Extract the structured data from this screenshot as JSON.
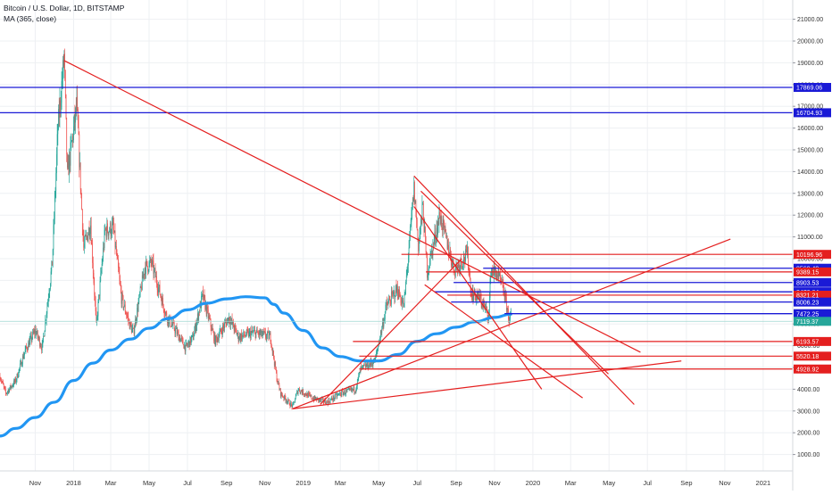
{
  "header": {
    "title": "Bitcoin / U.S. Dollar, 1D, BITSTAMP",
    "indicator": "MA (365, close)"
  },
  "chart_data": {
    "type": "candlestick",
    "title": "Bitcoin / U.S. Dollar, 1D, BITSTAMP",
    "indicator_label": "MA (365, close)",
    "ylim": [
      0,
      22000
    ],
    "y_ticks": [
      1000,
      2000,
      3000,
      4000,
      5000,
      6000,
      7000,
      8000,
      9000,
      10000,
      11000,
      12000,
      13000,
      14000,
      15000,
      16000,
      17000,
      18000,
      19000,
      20000,
      21000
    ],
    "xlim": [
      "2017-09-06",
      "2021-02-17"
    ],
    "x_ticks": [
      {
        "date": "2017-11-01",
        "label": "Nov"
      },
      {
        "date": "2018-01-01",
        "label": "2018"
      },
      {
        "date": "2018-03-01",
        "label": "Mar"
      },
      {
        "date": "2018-05-01",
        "label": "May"
      },
      {
        "date": "2018-07-01",
        "label": "Jul"
      },
      {
        "date": "2018-09-01",
        "label": "Sep"
      },
      {
        "date": "2018-11-01",
        "label": "Nov"
      },
      {
        "date": "2019-01-01",
        "label": "2019"
      },
      {
        "date": "2019-03-01",
        "label": "Mar"
      },
      {
        "date": "2019-05-01",
        "label": "May"
      },
      {
        "date": "2019-07-01",
        "label": "Jul"
      },
      {
        "date": "2019-09-01",
        "label": "Sep"
      },
      {
        "date": "2019-11-01",
        "label": "Nov"
      },
      {
        "date": "2020-01-01",
        "label": "2020"
      },
      {
        "date": "2020-03-01",
        "label": "Mar"
      },
      {
        "date": "2020-05-01",
        "label": "May"
      },
      {
        "date": "2020-07-01",
        "label": "Jul"
      },
      {
        "date": "2020-09-01",
        "label": "Sep"
      },
      {
        "date": "2020-11-01",
        "label": "Nov"
      },
      {
        "date": "2021-01-01",
        "label": "2021"
      }
    ],
    "price_path": [
      [
        "2017-09-06",
        4600
      ],
      [
        "2017-09-15",
        3800
      ],
      [
        "2017-10-01",
        4400
      ],
      [
        "2017-10-15",
        5700
      ],
      [
        "2017-11-01",
        6700
      ],
      [
        "2017-11-12",
        5900
      ],
      [
        "2017-11-28",
        9800
      ],
      [
        "2017-12-07",
        16000
      ],
      [
        "2017-12-17",
        19300
      ],
      [
        "2017-12-22",
        13800
      ],
      [
        "2018-01-06",
        17000
      ],
      [
        "2018-01-17",
        10500
      ],
      [
        "2018-01-28",
        11600
      ],
      [
        "2018-02-06",
        6900
      ],
      [
        "2018-02-20",
        11300
      ],
      [
        "2018-03-05",
        11400
      ],
      [
        "2018-03-18",
        8200
      ],
      [
        "2018-04-01",
        6900
      ],
      [
        "2018-04-06",
        6600
      ],
      [
        "2018-04-24",
        9600
      ],
      [
        "2018-05-05",
        9800
      ],
      [
        "2018-05-28",
        7400
      ],
      [
        "2018-06-12",
        6700
      ],
      [
        "2018-06-28",
        5900
      ],
      [
        "2018-07-10",
        6400
      ],
      [
        "2018-07-25",
        8300
      ],
      [
        "2018-08-14",
        6200
      ],
      [
        "2018-09-05",
        7300
      ],
      [
        "2018-09-20",
        6400
      ],
      [
        "2018-10-15",
        6600
      ],
      [
        "2018-11-10",
        6400
      ],
      [
        "2018-11-20",
        4500
      ],
      [
        "2018-11-26",
        3800
      ],
      [
        "2018-12-15",
        3200
      ],
      [
        "2018-12-24",
        4000
      ],
      [
        "2019-01-15",
        3600
      ],
      [
        "2019-02-08",
        3400
      ],
      [
        "2019-03-01",
        3800
      ],
      [
        "2019-03-25",
        4000
      ],
      [
        "2019-04-02",
        4900
      ],
      [
        "2019-04-25",
        5300
      ],
      [
        "2019-05-13",
        7800
      ],
      [
        "2019-05-30",
        8600
      ],
      [
        "2019-06-10",
        7800
      ],
      [
        "2019-06-26",
        13200
      ],
      [
        "2019-07-03",
        10600
      ],
      [
        "2019-07-10",
        12400
      ],
      [
        "2019-07-17",
        9400
      ],
      [
        "2019-08-06",
        12000
      ],
      [
        "2019-08-29",
        9500
      ],
      [
        "2019-09-19",
        10200
      ],
      [
        "2019-09-25",
        8400
      ],
      [
        "2019-10-08",
        8200
      ],
      [
        "2019-10-23",
        7400
      ],
      [
        "2019-10-26",
        9500
      ],
      [
        "2019-11-05",
        9300
      ],
      [
        "2019-11-15",
        8600
      ],
      [
        "2019-11-25",
        7100
      ],
      [
        "2019-11-27",
        7500
      ]
    ],
    "ma_365": [
      [
        "2017-09-06",
        1850
      ],
      [
        "2017-10-01",
        2200
      ],
      [
        "2017-11-01",
        2700
      ],
      [
        "2017-12-01",
        3400
      ],
      [
        "2018-01-01",
        4400
      ],
      [
        "2018-02-01",
        5200
      ],
      [
        "2018-03-01",
        5800
      ],
      [
        "2018-04-01",
        6300
      ],
      [
        "2018-05-01",
        6800
      ],
      [
        "2018-06-01",
        7250
      ],
      [
        "2018-07-01",
        7650
      ],
      [
        "2018-08-01",
        7950
      ],
      [
        "2018-09-01",
        8150
      ],
      [
        "2018-10-01",
        8250
      ],
      [
        "2018-11-01",
        8200
      ],
      [
        "2018-11-15",
        7900
      ],
      [
        "2018-12-01",
        7500
      ],
      [
        "2019-01-01",
        6700
      ],
      [
        "2019-02-01",
        5900
      ],
      [
        "2019-03-01",
        5500
      ],
      [
        "2019-04-01",
        5300
      ],
      [
        "2019-05-01",
        5300
      ],
      [
        "2019-06-01",
        5600
      ],
      [
        "2019-07-01",
        6200
      ],
      [
        "2019-08-01",
        6550
      ],
      [
        "2019-09-01",
        6850
      ],
      [
        "2019-10-01",
        7100
      ],
      [
        "2019-11-01",
        7300
      ],
      [
        "2019-11-27",
        7450
      ]
    ],
    "current_price_line": 7119.37,
    "horizontal_levels": [
      {
        "value": 17869.06,
        "label": "17869.06",
        "color": "#1a1ad6"
      },
      {
        "value": 16704.93,
        "label": "16704.93",
        "color": "#1a1ad6"
      },
      {
        "value": 10196.96,
        "label": "10196.96",
        "color": "#e41f1f"
      },
      {
        "value": 9560.49,
        "label": "9560.49",
        "color": "#1a1ad6"
      },
      {
        "value": 9389.15,
        "label": "9389.15",
        "color": "#e41f1f"
      },
      {
        "value": 8903.53,
        "label": "8903.53",
        "color": "#1a1ad6"
      },
      {
        "value": 8476.64,
        "label": "8476.64",
        "color": "#1a1ad6"
      },
      {
        "value": 8321.21,
        "label": "8321.21",
        "color": "#e41f1f"
      },
      {
        "value": 8006.23,
        "label": "8006.23",
        "color": "#1a1ad6"
      },
      {
        "value": 7472.25,
        "label": "7472.25",
        "color": "#1a1ad6"
      },
      {
        "value": 7119.37,
        "label": "7119.37",
        "color": "#26a69a"
      },
      {
        "value": 6193.57,
        "label": "6193.57",
        "color": "#e41f1f"
      },
      {
        "value": 5520.18,
        "label": "5520.18",
        "color": "#e41f1f"
      },
      {
        "value": 4928.92,
        "label": "4928.92",
        "color": "#e41f1f"
      }
    ],
    "trendlines": [
      {
        "from": [
          "2017-12-17",
          19100
        ],
        "to": [
          "2020-06-20",
          5700
        ],
        "color": "#e41f1f"
      },
      {
        "from": [
          "2018-12-15",
          3100
        ],
        "to": [
          "2020-11-10",
          10900
        ],
        "color": "#e41f1f"
      },
      {
        "from": [
          "2018-12-15",
          3100
        ],
        "to": [
          "2020-08-24",
          5300
        ],
        "color": "#e41f1f"
      },
      {
        "from": [
          "2019-06-26",
          13800
        ],
        "to": [
          "2020-06-10",
          3300
        ],
        "color": "#e41f1f"
      },
      {
        "from": [
          "2019-07-07",
          13100
        ],
        "to": [
          "2020-04-30",
          4700
        ],
        "color": "#e41f1f"
      },
      {
        "from": [
          "2019-06-26",
          12400
        ],
        "to": [
          "2020-01-15",
          4000
        ],
        "color": "#e41f1f"
      },
      {
        "from": [
          "2019-07-13",
          8800
        ],
        "to": [
          "2020-03-20",
          3600
        ],
        "color": "#e41f1f"
      },
      {
        "from": [
          "2019-01-28",
          3300
        ],
        "to": [
          "2019-09-10",
          10000
        ],
        "color": "#e41f1f"
      }
    ],
    "colors": {
      "up": "#26a69a",
      "down": "#ef5350",
      "ma": "#2196f3",
      "level_red": "#e41f1f",
      "level_blue": "#1a1ad6"
    }
  }
}
